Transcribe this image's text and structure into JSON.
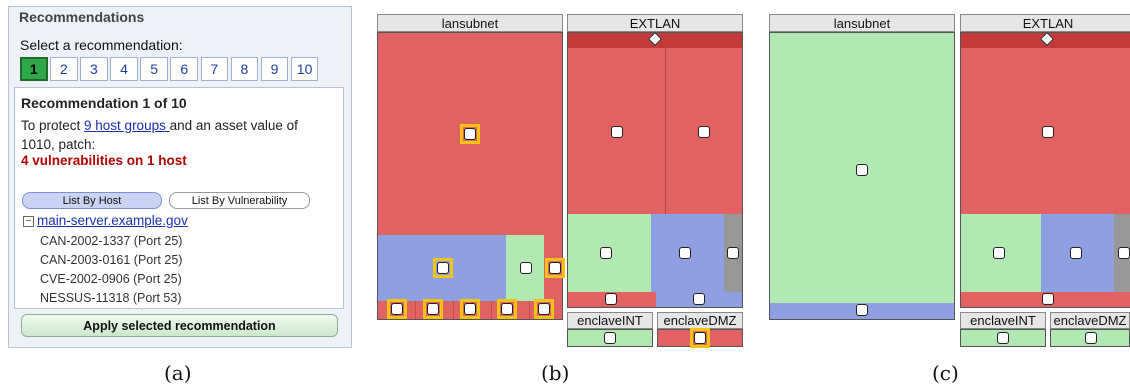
{
  "panel": {
    "legend": "Recommendations",
    "select_label": "Select a recommendation:",
    "pages": [
      "1",
      "2",
      "3",
      "4",
      "5",
      "6",
      "7",
      "8",
      "9",
      "10"
    ],
    "title": "Recommendation 1 of 10",
    "text_before_link": "To protect ",
    "link": "9 host groups ",
    "text_after_link": " and an asset value of 1010, patch:",
    "vulns": "4 vulnerabilities on 1 host",
    "btn_host": "List By Host",
    "btn_vuln": "List By Vulnerability",
    "tree_toggle": "−",
    "host": "main-server.example.gov",
    "items": [
      "CAN-2002-1337 (Port 25)",
      "CAN-2003-0161 (Port 25)",
      "CVE-2002-0906 (Port 25)",
      "NESSUS-11318 (Port 53)"
    ],
    "apply": "Apply selected recommendation"
  },
  "treemap_b": {
    "lansubnet": "lansubnet",
    "extlan": "EXTLAN",
    "enclave_int": "enclaveINT",
    "enclave_dmz": "enclaveDMZ"
  },
  "treemap_c": {
    "lansubnet": "lansubnet",
    "extlan": "EXTLAN",
    "enclave_int": "enclaveINT",
    "enclave_dmz": "enclaveDMZ"
  },
  "captions": [
    "(a)",
    "(b)",
    "(c)"
  ],
  "colors": {
    "vulnerable": "#e06262",
    "safe": "#b2e8b2",
    "partial": "#8fa0e2",
    "highlight": "#f1c40f"
  }
}
